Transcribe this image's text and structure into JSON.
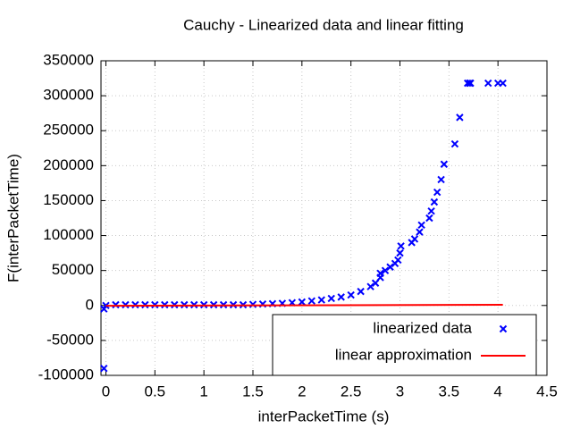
{
  "chart_data": {
    "type": "scatter",
    "title": "Cauchy - Linearized data and linear fitting",
    "x_label": "interPacketTime (s)",
    "y_label": "F(interPacketTime)",
    "xlim": [
      -0.05,
      4.5
    ],
    "ylim": [
      -100000,
      350000
    ],
    "xticks": [
      0,
      0.5,
      1,
      1.5,
      2,
      2.5,
      3,
      3.5,
      4,
      4.5
    ],
    "yticks": [
      -100000,
      -50000,
      0,
      50000,
      100000,
      150000,
      200000,
      250000,
      300000,
      350000
    ],
    "grid": true,
    "legend": "lower right",
    "series": [
      {
        "name": "linearized data",
        "type": "scatter",
        "color": "#0000ff",
        "x": [
          -0.02,
          -0.02,
          0,
          0.1,
          0.2,
          0.3,
          0.4,
          0.5,
          0.6,
          0.7,
          0.8,
          0.9,
          1.0,
          1.1,
          1.2,
          1.3,
          1.4,
          1.5,
          1.6,
          1.7,
          1.8,
          1.9,
          2.0,
          2.1,
          2.2,
          2.3,
          2.4,
          2.5,
          2.6,
          2.7,
          2.75,
          2.8,
          2.8,
          2.85,
          2.9,
          2.95,
          2.98,
          3.0,
          3.01,
          3.12,
          3.15,
          3.2,
          3.22,
          3.3,
          3.32,
          3.35,
          3.38,
          3.42,
          3.45,
          3.56,
          3.61,
          3.69,
          3.71,
          3.72,
          3.9,
          4.0,
          4.05
        ],
        "values": [
          -90000,
          -5000,
          0,
          1000,
          1000,
          1000,
          1000,
          1000,
          1000,
          1000,
          1000,
          1000,
          1000,
          1000,
          1000,
          1000,
          1000,
          1500,
          2000,
          2500,
          3000,
          4000,
          5000,
          6500,
          8000,
          10000,
          12000,
          15000,
          20000,
          27000,
          32000,
          40000,
          46000,
          50000,
          55000,
          60000,
          65000,
          75000,
          85000,
          90000,
          95000,
          105000,
          115000,
          125000,
          135000,
          148000,
          162000,
          180000,
          202000,
          231000,
          269000,
          318000,
          318000,
          318000,
          318000,
          318000,
          318000
        ]
      },
      {
        "name": "linear approximation",
        "type": "line",
        "color": "#ff0000",
        "x": [
          0,
          4.05
        ],
        "values": [
          -500,
          1000
        ]
      }
    ]
  }
}
